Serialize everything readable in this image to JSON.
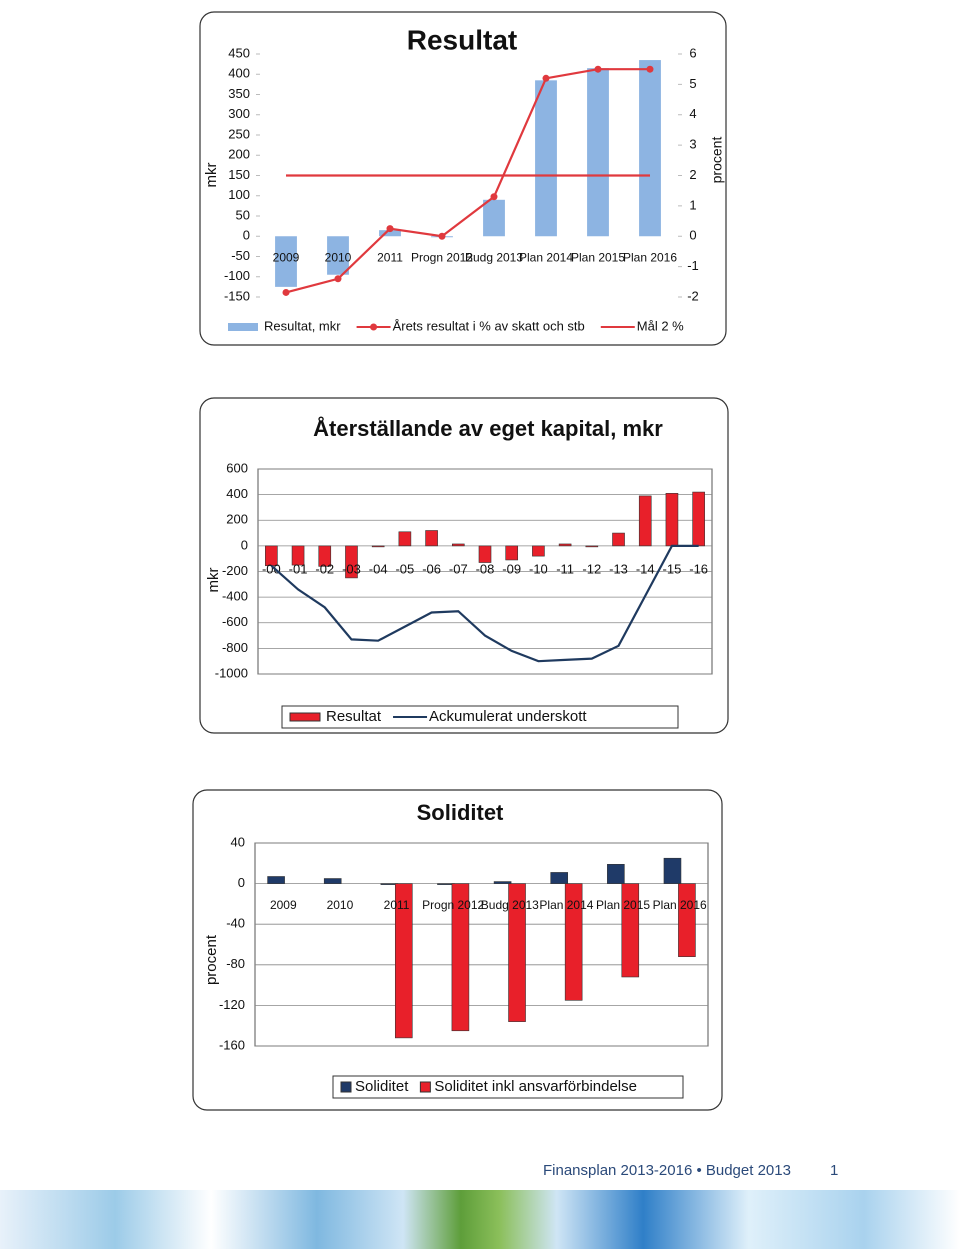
{
  "chart_data": [
    {
      "type": "bar",
      "title": "Resultat",
      "ylabel": "mkr",
      "y2label": "procent",
      "categories": [
        "2009",
        "2010",
        "2011",
        "Progn 2012",
        "Budg 2013",
        "Plan 2014",
        "Plan 2015",
        "Plan 2016"
      ],
      "series": [
        {
          "name": "Resultat, mkr",
          "type": "bar",
          "color": "#8db4e2",
          "values": [
            -125,
            -95,
            15,
            0,
            90,
            385,
            415,
            435
          ]
        },
        {
          "name": "Årets resultat i % av skatt och stb",
          "type": "line",
          "marker": true,
          "axis": "y2",
          "color": "#e0393e",
          "values": [
            -1.85,
            -1.4,
            0.25,
            0,
            1.3,
            5.2,
            5.5,
            5.5
          ]
        },
        {
          "name": "Mål 2 %",
          "type": "line",
          "axis": "y2",
          "color": "#e0393e",
          "values": [
            2,
            2,
            2,
            2,
            2,
            2,
            2,
            2
          ]
        }
      ],
      "ylim": [
        -150,
        450
      ],
      "yticks": [
        450,
        400,
        350,
        300,
        250,
        200,
        150,
        100,
        50,
        0,
        -50,
        -100,
        -150
      ],
      "y2lim": [
        -2,
        6
      ],
      "y2ticks": [
        6,
        5,
        4,
        3,
        2,
        1,
        0,
        -1,
        -2
      ],
      "grid": false
    },
    {
      "type": "bar",
      "title": "Återställande av eget kapital, mkr",
      "ylabel": "mkr",
      "categories": [
        "-00",
        "-01",
        "-02",
        "-03",
        "-04",
        "-05",
        "-06",
        "-07",
        "-08",
        "-09",
        "-10",
        "-11",
        "-12",
        "-13",
        "-14",
        "-15",
        "-16"
      ],
      "series": [
        {
          "name": "Resultat",
          "type": "bar",
          "color": "#e8202a",
          "values": [
            -155,
            -150,
            -160,
            -250,
            0,
            110,
            120,
            15,
            -130,
            -110,
            -80,
            15,
            0,
            100,
            390,
            410,
            420
          ]
        },
        {
          "name": "Ackumulerat underskott",
          "type": "line",
          "color": "#1f3a5f",
          "values": [
            -155,
            -340,
            -480,
            -730,
            -740,
            -630,
            -520,
            -510,
            -700,
            -820,
            -900,
            -890,
            -880,
            -780,
            -390,
            0,
            0
          ]
        }
      ],
      "ylim": [
        -1000,
        600
      ],
      "yticks": [
        600,
        400,
        200,
        0,
        -200,
        -400,
        -600,
        -800,
        -1000
      ],
      "grid": true
    },
    {
      "type": "bar",
      "title": "Soliditet",
      "ylabel": "procent",
      "categories": [
        "2009",
        "2010",
        "2011",
        "Progn 2012",
        "Budg 2013",
        "Plan 2014",
        "Plan 2015",
        "Plan 2016"
      ],
      "series": [
        {
          "name": "Soliditet",
          "type": "bar",
          "color": "#1f3a68",
          "values": [
            7,
            5,
            -1,
            -1,
            2,
            11,
            19,
            25
          ]
        },
        {
          "name": "Soliditet inkl ansvarförbindelse",
          "type": "bar",
          "color": "#e8202a",
          "values": [
            null,
            null,
            -152,
            -145,
            -136,
            -115,
            -92,
            -72
          ]
        }
      ],
      "ylim": [
        -160,
        40
      ],
      "yticks": [
        40,
        0,
        -40,
        -80,
        -120,
        -160
      ],
      "grid": true
    }
  ],
  "footer": {
    "text": "Finansplan 2013-2016 • Budget 2013",
    "page": "1"
  }
}
